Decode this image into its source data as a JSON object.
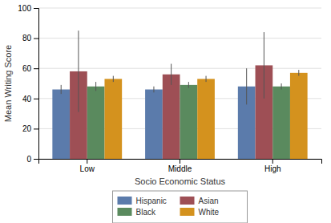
{
  "chart_data": {
    "type": "bar",
    "categories": [
      "Low",
      "Middle",
      "High"
    ],
    "series": [
      {
        "name": "Hispanic",
        "color": "#5b7bab",
        "values": [
          46,
          46,
          48
        ],
        "errors": [
          3,
          2,
          12
        ]
      },
      {
        "name": "Asian",
        "color": "#9e4f55",
        "values": [
          58,
          56,
          62
        ],
        "errors": [
          27,
          7,
          22
        ]
      },
      {
        "name": "Black",
        "color": "#5a8a5e",
        "values": [
          48,
          49,
          48
        ],
        "errors": [
          3,
          2,
          2
        ]
      },
      {
        "name": "White",
        "color": "#d4921e",
        "values": [
          53,
          53,
          57
        ],
        "errors": [
          2,
          2,
          2
        ]
      }
    ],
    "xlabel": "Socio Economic Status",
    "ylabel": "Mean Writing Score",
    "ylim": [
      0,
      100
    ],
    "yticks": [
      0,
      20,
      40,
      60,
      80,
      100
    ],
    "grid": true,
    "legend": "bottom"
  }
}
